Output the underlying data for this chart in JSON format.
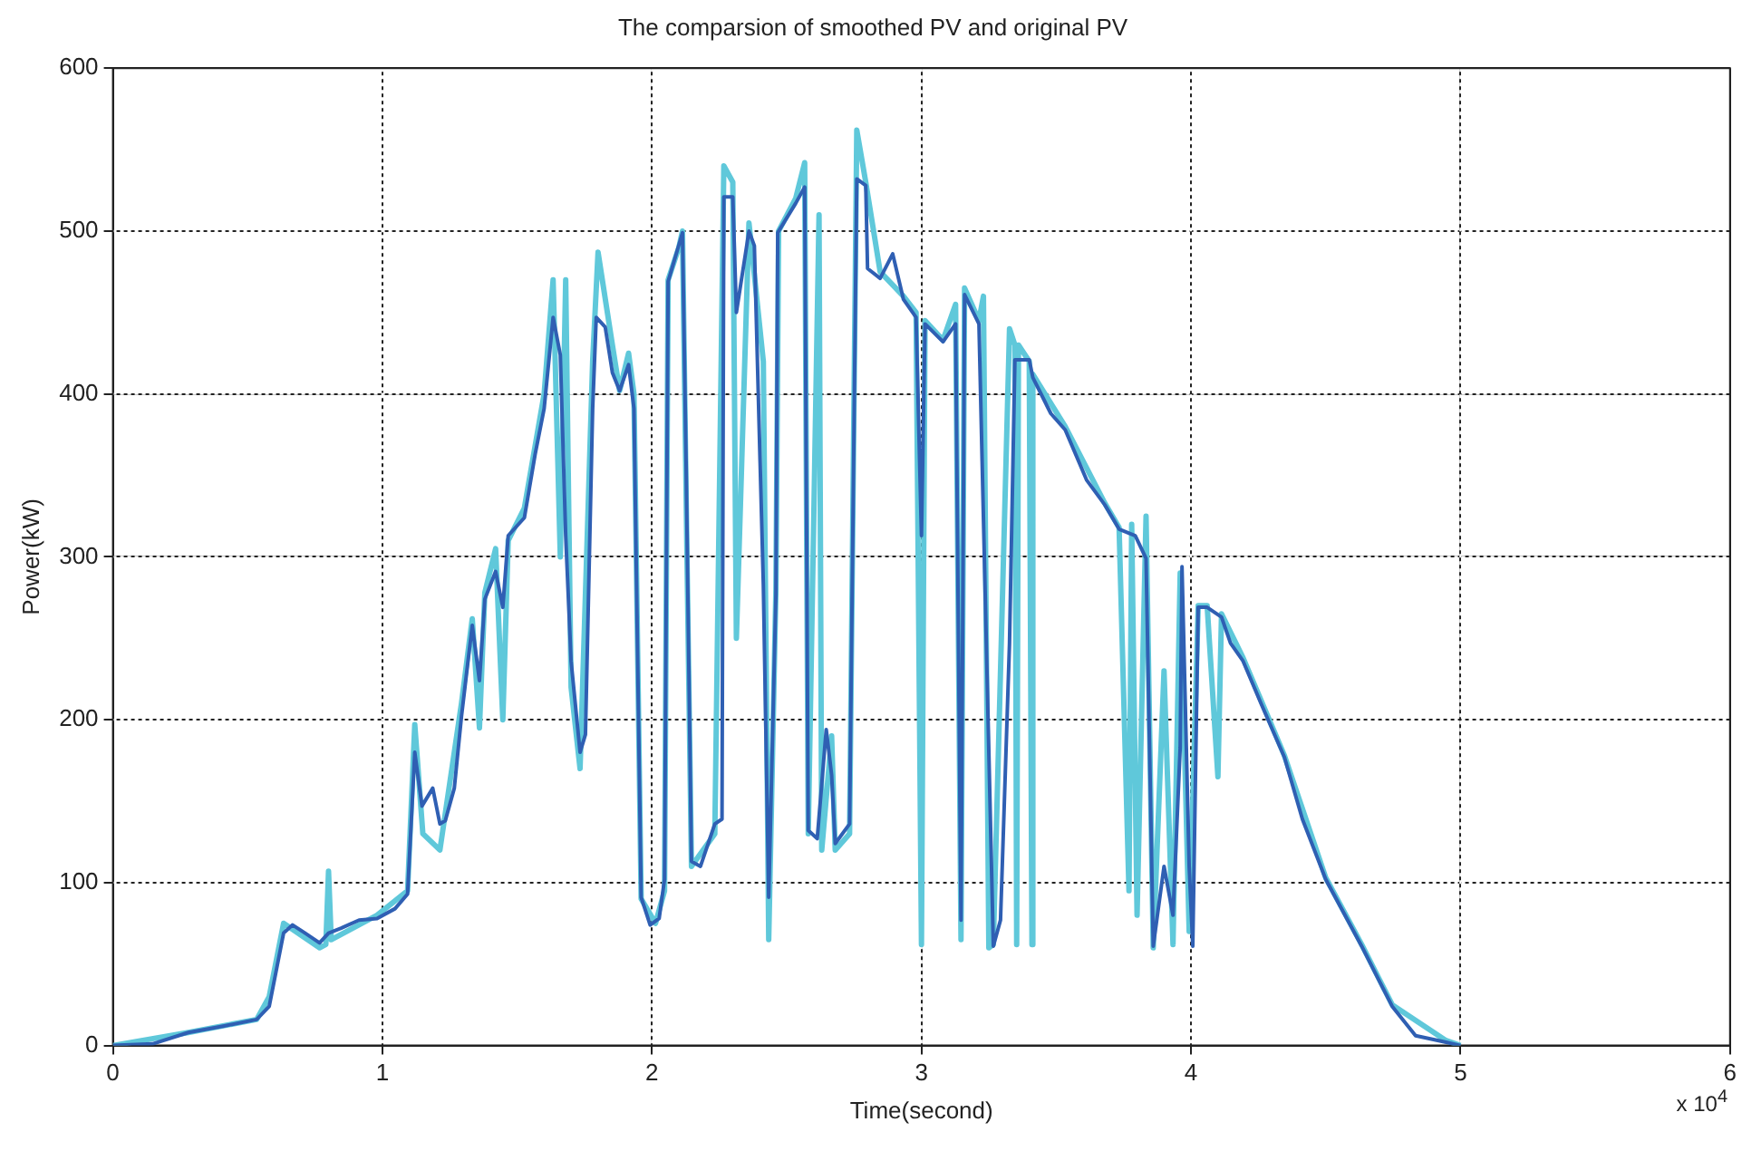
{
  "chart_data": {
    "type": "line",
    "title": "The comparsion of smoothed PV and original PV",
    "xlabel": "Time(second)",
    "ylabel": "Power(kW)",
    "annotations": [
      "x 10$^{4}$"
    ],
    "xlim": [
      0,
      6
    ],
    "xticks": [
      0,
      1,
      2,
      3,
      4,
      5,
      6
    ],
    "ylim": [
      0,
      600
    ],
    "yticks": [
      0,
      100,
      200,
      300,
      400,
      500,
      600
    ],
    "grid": true,
    "legend": false,
    "series": [
      {
        "color": "#5fc8da",
        "x": [
          0,
          0.28,
          0.5333,
          0.58,
          0.6333,
          0.7667,
          0.79,
          0.8,
          0.81,
          0.98,
          1.0933,
          1.12,
          1.15,
          1.2133,
          1.2933,
          1.3333,
          1.36,
          1.38,
          1.42,
          1.4467,
          1.4667,
          1.5267,
          1.6,
          1.6333,
          1.66,
          1.68,
          1.7,
          1.7333,
          1.78,
          1.8,
          1.8533,
          1.88,
          1.9133,
          1.9333,
          1.96,
          2.0133,
          2.0467,
          2.06,
          2.1,
          2.1133,
          2.13,
          2.1467,
          2.2333,
          2.2667,
          2.3,
          2.3133,
          2.36,
          2.4133,
          2.4333,
          2.46,
          2.47,
          2.5333,
          2.5667,
          2.58,
          2.62,
          2.63,
          2.6667,
          2.68,
          2.7333,
          2.76,
          2.7933,
          2.8467,
          2.9333,
          2.98,
          3,
          3.0133,
          3.08,
          3.1267,
          3.1467,
          3.16,
          3.2133,
          3.23,
          3.25,
          3.2667,
          3.3267,
          3.3467,
          3.3533,
          3.36,
          3.4,
          3.41,
          3.4133,
          3.5333,
          3.68,
          3.7333,
          3.77,
          3.78,
          3.8,
          3.8333,
          3.86,
          3.9,
          3.9333,
          3.96,
          3.9933,
          4.0267,
          4.06,
          4.1,
          4.1133,
          4.1933,
          4.3467,
          4.5,
          4.6333,
          4.7467,
          4.9467,
          5
        ],
        "values": [
          0,
          8,
          16,
          30,
          75,
          60,
          62,
          107,
          65,
          80,
          95,
          197,
          130,
          120,
          210,
          262,
          195,
          278,
          305,
          200,
          310,
          330,
          400,
          470,
          300,
          470,
          220,
          170,
          420,
          487,
          430,
          402,
          425,
          400,
          90,
          75,
          95,
          470,
          490,
          500,
          300,
          110,
          130,
          540,
          530,
          250,
          505,
          420,
          65,
          280,
          500,
          520,
          542,
          130,
          510,
          120,
          190,
          120,
          130,
          562,
          530,
          475,
          460,
          450,
          62,
          445,
          433,
          455,
          65,
          465,
          445,
          460,
          60,
          62,
          440,
          430,
          62,
          430,
          420,
          62,
          412,
          380,
          333,
          318,
          95,
          320,
          80,
          325,
          60,
          230,
          62,
          290,
          70,
          270,
          270,
          165,
          265,
          238,
          178,
          103,
          62,
          25,
          3,
          0
        ]
      },
      {
        "color": "#2f5fb3",
        "x": [
          0,
          0.1467,
          0.28,
          0.4133,
          0.5333,
          0.58,
          0.6333,
          0.6667,
          0.7133,
          0.7667,
          0.8,
          0.8467,
          0.9133,
          0.98,
          1.0467,
          1.0933,
          1.12,
          1.1467,
          1.1867,
          1.2133,
          1.2333,
          1.2667,
          1.2933,
          1.3333,
          1.36,
          1.38,
          1.42,
          1.4467,
          1.4667,
          1.5267,
          1.5667,
          1.6,
          1.6333,
          1.66,
          1.68,
          1.7,
          1.7333,
          1.7533,
          1.78,
          1.7933,
          1.8267,
          1.8533,
          1.88,
          1.9133,
          1.9333,
          1.96,
          1.9933,
          2.0267,
          2.0467,
          2.06,
          2.1133,
          2.1267,
          2.1467,
          2.18,
          2.2333,
          2.26,
          2.2667,
          2.3,
          2.3133,
          2.36,
          2.38,
          2.4133,
          2.4333,
          2.46,
          2.4667,
          2.5333,
          2.5667,
          2.58,
          2.6133,
          2.6467,
          2.6667,
          2.68,
          2.7333,
          2.76,
          2.7933,
          2.8,
          2.8467,
          2.8933,
          2.9333,
          2.98,
          3,
          3.0133,
          3.08,
          3.1267,
          3.1467,
          3.16,
          3.2133,
          3.2667,
          3.2933,
          3.3267,
          3.3467,
          3.4,
          3.4133,
          3.48,
          3.5333,
          3.6133,
          3.68,
          3.7333,
          3.7933,
          3.8333,
          3.86,
          3.9,
          3.9333,
          3.96,
          3.9667,
          3.9933,
          4.0067,
          4.0267,
          4.06,
          4.1133,
          4.1467,
          4.1933,
          4.26,
          4.3467,
          4.4133,
          4.5,
          4.6333,
          4.7467,
          4.8333,
          4.9467,
          5
        ],
        "values": [
          0,
          1,
          8,
          12,
          16,
          24,
          69,
          74,
          69,
          63,
          69,
          72,
          77,
          78,
          84,
          93,
          180,
          147,
          158,
          136,
          138,
          158,
          202,
          258,
          224,
          274,
          291,
          269,
          313,
          324,
          363,
          391,
          447,
          424,
          313,
          236,
          180,
          191,
          391,
          447,
          441,
          413,
          402,
          418,
          391,
          91,
          74,
          78,
          102,
          469,
          499,
          358,
          113,
          110,
          136,
          139,
          521,
          521,
          450,
          500,
          491,
          283,
          91,
          277,
          499,
          517,
          527,
          132,
          127,
          194,
          166,
          124,
          136,
          532,
          528,
          477,
          471,
          486,
          458,
          447,
          313,
          443,
          432,
          443,
          77,
          461,
          443,
          61,
          77,
          247,
          421,
          421,
          410,
          388,
          378,
          347,
          332,
          317,
          313,
          299,
          61,
          110,
          80,
          183,
          294,
          110,
          61,
          269,
          269,
          263,
          247,
          236,
          210,
          177,
          139,
          102,
          61,
          24,
          6,
          2,
          0
        ]
      }
    ]
  }
}
